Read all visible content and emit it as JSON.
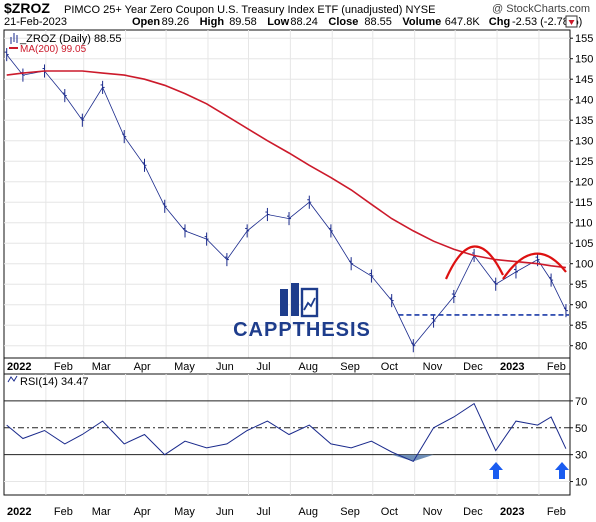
{
  "header": {
    "ticker": "$ZROZ",
    "description": "PIMCO 25+ Year Zero Coupon U.S. Treasury Index ETF (unadjusted) NYSE",
    "watermark": "@ StockCharts.com",
    "date": "21-Feb-2023",
    "quote": [
      {
        "label": "Open",
        "value": "89.26"
      },
      {
        "label": "High",
        "value": "89.58"
      },
      {
        "label": "Low",
        "value": "88.24"
      },
      {
        "label": "Close",
        "value": "88.55"
      },
      {
        "label": "Volume",
        "value": "647.8K"
      },
      {
        "label": "Chg",
        "value": "-2.53 (-2.78%)"
      }
    ],
    "trend_icon": "down-arrow-icon"
  },
  "price_panel": {
    "legend_series": "_ZROZ (Daily) 88.55",
    "legend_ma": "MA(200) 99.05",
    "y_ticks": [
      "155",
      "150",
      "145",
      "140",
      "135",
      "130",
      "125",
      "120",
      "115",
      "110",
      "105",
      "100",
      "95",
      "90",
      "85",
      "80"
    ],
    "logo_text": "CAPPTHESIS",
    "colors": {
      "price": "#1a2a8c",
      "ma": "#cc1a2b",
      "support": "#1a3aa8",
      "annotation": "#dd1111"
    }
  },
  "rsi_panel": {
    "legend": "RSI(14) 34.47",
    "y_ticks": [
      "70",
      "50",
      "30",
      "10"
    ],
    "colors": {
      "line": "#1a2a8c",
      "fill": "#6f8fb8",
      "arrow": "#1a5cf0"
    }
  },
  "months": [
    "2022",
    "Feb",
    "Mar",
    "Apr",
    "May",
    "Jun",
    "Jul",
    "Aug",
    "Sep",
    "Oct",
    "Nov",
    "Dec",
    "2023",
    "Feb"
  ],
  "chart_data": [
    {
      "type": "line",
      "title": "$ZROZ PIMCO 25+ Year Zero Coupon U.S. Treasury Index ETF (unadjusted) NYSE",
      "x": [
        "2022-01-03",
        "2022-01-15",
        "2022-01-31",
        "2022-02-15",
        "2022-02-28",
        "2022-03-15",
        "2022-03-31",
        "2022-04-15",
        "2022-04-30",
        "2022-05-15",
        "2022-05-31",
        "2022-06-15",
        "2022-06-30",
        "2022-07-15",
        "2022-07-31",
        "2022-08-15",
        "2022-08-31",
        "2022-09-15",
        "2022-09-30",
        "2022-10-15",
        "2022-10-31",
        "2022-11-15",
        "2022-11-30",
        "2022-12-15",
        "2022-12-31",
        "2023-01-15",
        "2023-01-31",
        "2023-02-10",
        "2023-02-21"
      ],
      "series": [
        {
          "name": "_ZROZ (Daily)",
          "values": [
            151,
            146,
            147,
            141,
            135,
            143,
            131,
            124,
            114,
            108,
            106,
            101,
            108,
            112,
            111,
            115,
            108,
            100,
            97,
            91,
            80,
            86,
            92,
            102,
            95,
            98,
            101,
            96,
            88.55
          ]
        },
        {
          "name": "MA(200)",
          "values": [
            146,
            146.5,
            147,
            147,
            147,
            146.5,
            146,
            145,
            143.5,
            141.5,
            139,
            136,
            133,
            130,
            127,
            124,
            121,
            118,
            114.5,
            111,
            108,
            105.5,
            103.5,
            102,
            101,
            100.5,
            100,
            99.5,
            99.05
          ]
        }
      ],
      "annotations": {
        "support_level": 87.5
      },
      "ylim": [
        77,
        157
      ],
      "y_scale": "linear",
      "grid": true,
      "legend_placement": "top-left"
    },
    {
      "type": "line",
      "title": "RSI(14) 34.47",
      "x": [
        "2022-01-03",
        "2022-01-15",
        "2022-01-31",
        "2022-02-15",
        "2022-02-28",
        "2022-03-15",
        "2022-03-31",
        "2022-04-15",
        "2022-04-30",
        "2022-05-15",
        "2022-05-31",
        "2022-06-15",
        "2022-06-30",
        "2022-07-15",
        "2022-07-31",
        "2022-08-15",
        "2022-08-31",
        "2022-09-15",
        "2022-09-30",
        "2022-10-15",
        "2022-10-31",
        "2022-11-15",
        "2022-11-30",
        "2022-12-15",
        "2022-12-31",
        "2023-01-15",
        "2023-01-31",
        "2023-02-10",
        "2023-02-21"
      ],
      "series": [
        {
          "name": "RSI(14)",
          "values": [
            52,
            42,
            48,
            38,
            45,
            55,
            38,
            45,
            30,
            40,
            35,
            38,
            48,
            55,
            45,
            52,
            38,
            35,
            40,
            32,
            25,
            50,
            58,
            68,
            33,
            55,
            52,
            58,
            34.47
          ]
        }
      ],
      "reference_lines": [
        70,
        50,
        30
      ],
      "ylim": [
        0,
        90
      ],
      "grid": true,
      "legend_placement": "top-left"
    }
  ]
}
